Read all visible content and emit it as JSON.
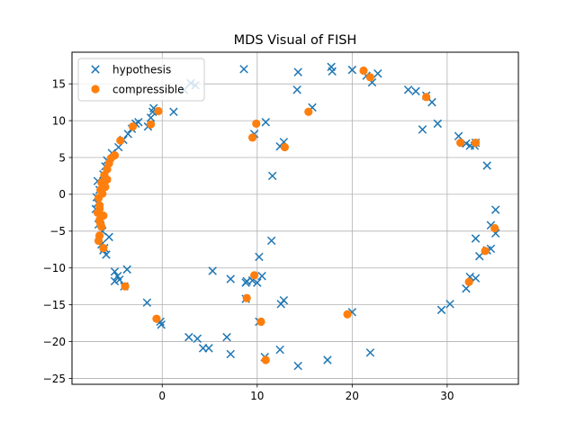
{
  "chart_data": {
    "type": "scatter",
    "title": "MDS Visual of FISH",
    "xlabel": "",
    "ylabel": "",
    "xlim": [
      -9.5,
      37.5
    ],
    "ylim": [
      -25.8,
      19.3
    ],
    "xticks": [
      0,
      10,
      20,
      30
    ],
    "yticks": [
      -25,
      -20,
      -15,
      -10,
      -5,
      0,
      5,
      10,
      15
    ],
    "grid": true,
    "legend_position": "top-left",
    "series": [
      {
        "name": "hypothesis",
        "marker": "x",
        "color": "#1f77b4",
        "points": [
          [
            -6.8,
            -1.2
          ],
          [
            -6.5,
            -3.3
          ],
          [
            -7.0,
            -2.0
          ],
          [
            -6.7,
            -4.1
          ],
          [
            -6.3,
            -5.0
          ],
          [
            -6.9,
            -0.4
          ],
          [
            -6.6,
            0.6
          ],
          [
            -6.8,
            1.8
          ],
          [
            -6.2,
            2.7
          ],
          [
            -6.0,
            3.8
          ],
          [
            -5.8,
            4.6
          ],
          [
            -5.3,
            5.6
          ],
          [
            -6.6,
            -6.2
          ],
          [
            -6.1,
            -7.3
          ],
          [
            -5.9,
            -8.2
          ],
          [
            -6.4,
            -6.8
          ],
          [
            -5.6,
            -5.8
          ],
          [
            -6.2,
            -7.6
          ],
          [
            -5.0,
            -10.5
          ],
          [
            -4.7,
            -11.1
          ],
          [
            -5.0,
            -11.8
          ],
          [
            -4.5,
            -11.6
          ],
          [
            -3.7,
            -10.2
          ],
          [
            -4.0,
            -12.5
          ],
          [
            -4.6,
            6.4
          ],
          [
            -4.1,
            7.4
          ],
          [
            -3.6,
            8.2
          ],
          [
            -3.2,
            8.9
          ],
          [
            -2.8,
            9.6
          ],
          [
            -2.5,
            9.8
          ],
          [
            -1.2,
            10.4
          ],
          [
            -1.0,
            11.2
          ],
          [
            -0.9,
            11.7
          ],
          [
            -1.5,
            9.2
          ],
          [
            -1.6,
            -14.7
          ],
          [
            -0.2,
            -17.3
          ],
          [
            -0.1,
            -17.7
          ],
          [
            1.2,
            11.2
          ],
          [
            2.3,
            14.2
          ],
          [
            3.0,
            15.1
          ],
          [
            3.5,
            14.8
          ],
          [
            2.8,
            -19.4
          ],
          [
            3.7,
            -19.6
          ],
          [
            4.3,
            -20.9
          ],
          [
            4.9,
            -20.9
          ],
          [
            6.8,
            -19.4
          ],
          [
            7.2,
            -21.7
          ],
          [
            5.3,
            -10.4
          ],
          [
            7.2,
            -11.5
          ],
          [
            8.8,
            -12.0
          ],
          [
            8.9,
            -11.8
          ],
          [
            8.8,
            -14.2
          ],
          [
            9.5,
            -11.7
          ],
          [
            10.0,
            -12.0
          ],
          [
            10.5,
            -11.1
          ],
          [
            10.2,
            -8.5
          ],
          [
            11.5,
            -6.3
          ],
          [
            10.2,
            -17.3
          ],
          [
            10.8,
            -22.1
          ],
          [
            12.4,
            -21.1
          ],
          [
            12.5,
            -14.9
          ],
          [
            12.8,
            -14.4
          ],
          [
            14.3,
            -23.3
          ],
          [
            8.6,
            17.0
          ],
          [
            9.7,
            8.2
          ],
          [
            10.9,
            9.8
          ],
          [
            11.6,
            2.5
          ],
          [
            12.4,
            6.5
          ],
          [
            12.8,
            7.1
          ],
          [
            14.3,
            16.6
          ],
          [
            14.2,
            14.2
          ],
          [
            15.8,
            11.8
          ],
          [
            17.8,
            17.3
          ],
          [
            17.9,
            16.7
          ],
          [
            20.0,
            16.9
          ],
          [
            21.5,
            16.1
          ],
          [
            22.7,
            16.4
          ],
          [
            22.1,
            15.2
          ],
          [
            25.9,
            14.2
          ],
          [
            26.7,
            14.0
          ],
          [
            27.8,
            13.4
          ],
          [
            28.4,
            12.5
          ],
          [
            29.0,
            9.6
          ],
          [
            27.4,
            8.8
          ],
          [
            31.2,
            7.9
          ],
          [
            32.0,
            6.9
          ],
          [
            32.4,
            6.6
          ],
          [
            33.0,
            7.0
          ],
          [
            32.9,
            6.6
          ],
          [
            34.2,
            3.9
          ],
          [
            35.1,
            -2.1
          ],
          [
            34.6,
            -4.2
          ],
          [
            35.1,
            -5.3
          ],
          [
            34.6,
            -7.4
          ],
          [
            34.2,
            -7.6
          ],
          [
            33.4,
            -8.4
          ],
          [
            33.0,
            -6.0
          ],
          [
            32.4,
            -11.2
          ],
          [
            33.0,
            -11.4
          ],
          [
            32.0,
            -12.8
          ],
          [
            30.3,
            -14.9
          ],
          [
            29.4,
            -15.7
          ],
          [
            20.0,
            -16.0
          ],
          [
            21.9,
            -21.5
          ],
          [
            17.4,
            -22.5
          ]
        ]
      },
      {
        "name": "compressible",
        "marker": "o",
        "color": "#ff7f0e",
        "points": [
          [
            -6.7,
            -0.5
          ],
          [
            -6.6,
            -1.5
          ],
          [
            -6.8,
            -2.5
          ],
          [
            -6.6,
            -3.5
          ],
          [
            -6.4,
            -4.4
          ],
          [
            -6.6,
            -5.6
          ],
          [
            -6.7,
            -6.3
          ],
          [
            -6.2,
            -7.3
          ],
          [
            -6.5,
            0.6
          ],
          [
            -6.4,
            1.6
          ],
          [
            -6.1,
            2.6
          ],
          [
            -5.8,
            3.4
          ],
          [
            -5.6,
            4.2
          ],
          [
            -5.4,
            4.9
          ],
          [
            -5.0,
            5.3
          ],
          [
            -6.6,
            -2.0
          ],
          [
            -6.3,
            0.1
          ],
          [
            -6.0,
            1.0
          ],
          [
            -6.5,
            -4.0
          ],
          [
            -6.2,
            -2.9
          ],
          [
            -5.8,
            2.0
          ],
          [
            -4.4,
            7.3
          ],
          [
            -3.1,
            9.2
          ],
          [
            -1.2,
            9.5
          ],
          [
            -0.4,
            11.3
          ],
          [
            -3.9,
            -12.5
          ],
          [
            -0.6,
            -16.9
          ],
          [
            9.9,
            9.6
          ],
          [
            9.5,
            7.7
          ],
          [
            12.9,
            6.4
          ],
          [
            15.4,
            11.2
          ],
          [
            9.7,
            -11.0
          ],
          [
            8.9,
            -14.1
          ],
          [
            10.4,
            -17.3
          ],
          [
            10.9,
            -22.5
          ],
          [
            19.5,
            -16.3
          ],
          [
            21.2,
            16.8
          ],
          [
            21.9,
            15.9
          ],
          [
            27.8,
            13.2
          ],
          [
            31.4,
            7.0
          ],
          [
            33.0,
            7.0
          ],
          [
            35.0,
            -4.6
          ],
          [
            34.0,
            -7.7
          ],
          [
            32.3,
            -11.9
          ]
        ]
      }
    ]
  }
}
